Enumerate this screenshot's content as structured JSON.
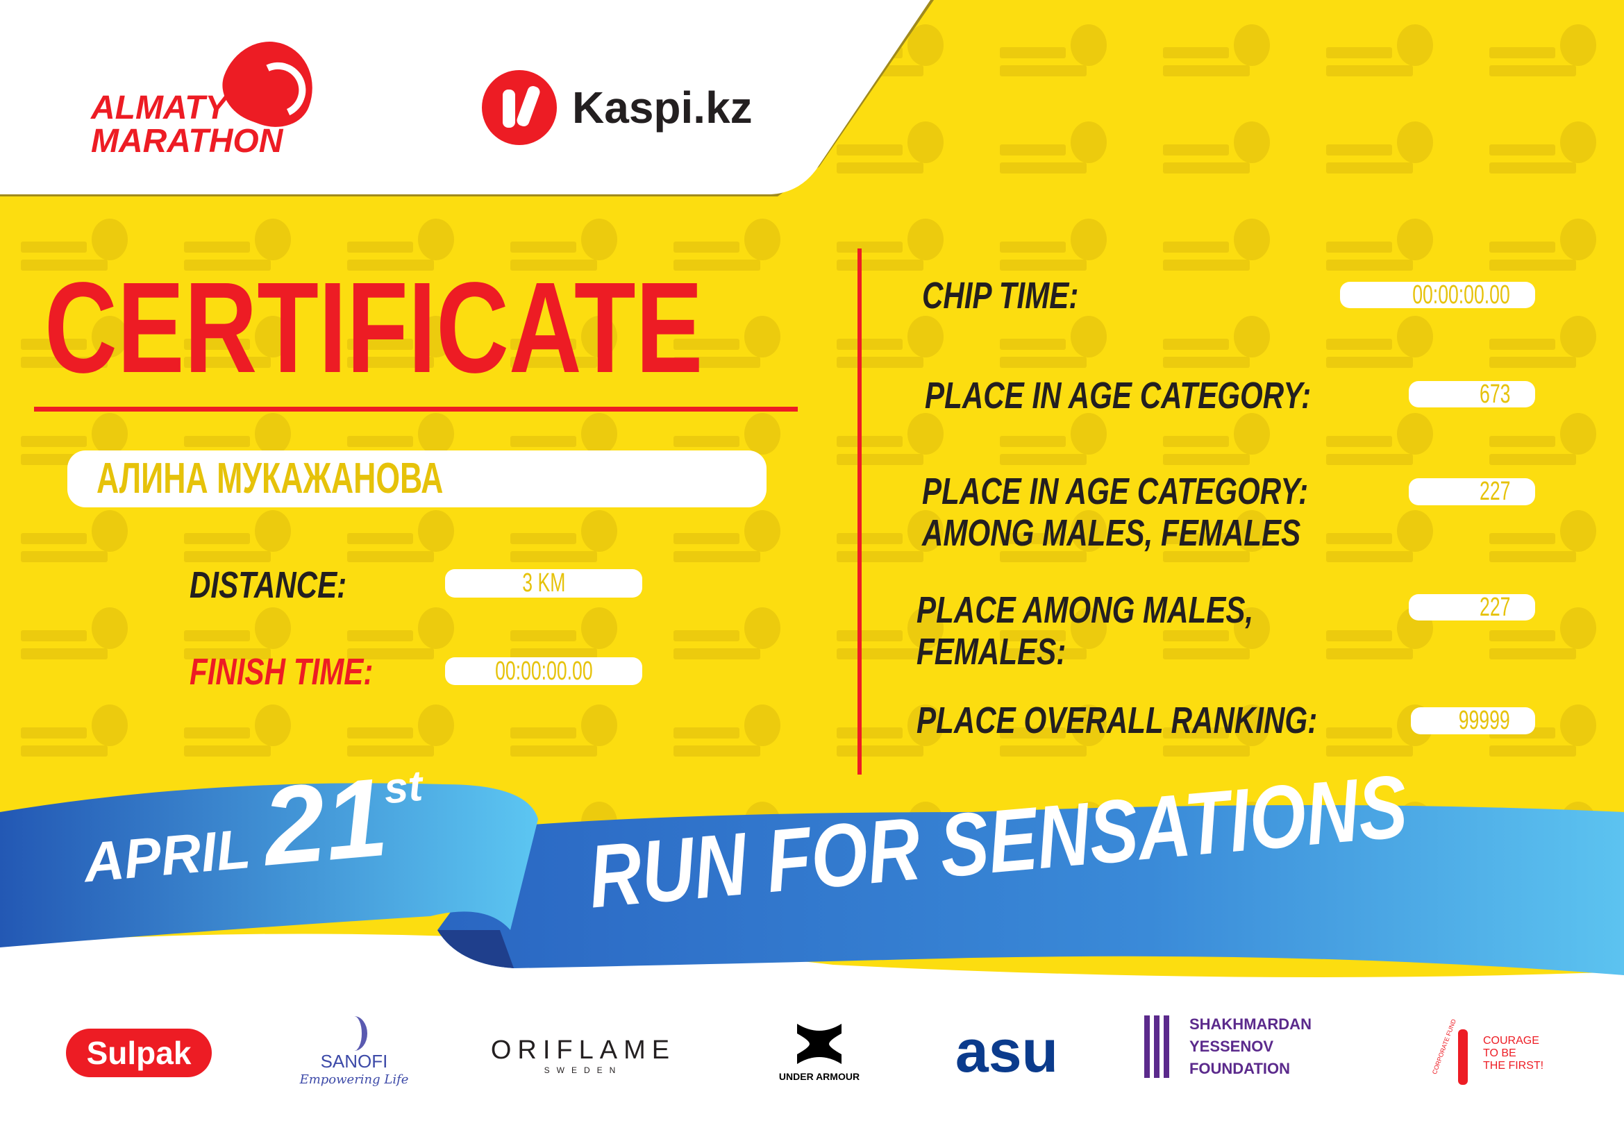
{
  "colors": {
    "yellow": "#fcdd10",
    "red": "#ed1c24",
    "dark": "#231f20",
    "blue": "#2f7fd0",
    "light_blue": "#5cc3f0"
  },
  "watermark": {
    "line1": "ALMATY",
    "line2": "MARATHON"
  },
  "header": {
    "organizer_logo": {
      "line1": "ALMATY",
      "line2": "MARATHON"
    },
    "sponsor_logo": "Kaspi.kz"
  },
  "title": "CERTIFICATE",
  "participant_name": "АЛИНА МУКАЖАНОВА",
  "left_fields": [
    {
      "label": "DISTANCE:",
      "value": "3 KM"
    },
    {
      "label": "FINISH TIME:",
      "value": "00:00:00.00"
    }
  ],
  "right_fields": [
    {
      "label": "CHIP TIME:",
      "value": "00:00:00.00"
    },
    {
      "label": "PLACE IN AGE CATEGORY:",
      "value": "673"
    },
    {
      "label": "PLACE IN AGE CATEGORY:",
      "label2": "AMONG MALES, FEMALES",
      "value": "227"
    },
    {
      "label": "PLACE AMONG MALES,",
      "label2": "FEMALES:",
      "value": "227"
    },
    {
      "label": "PLACE OVERALL RANKING:",
      "value": "99999"
    }
  ],
  "ribbon": {
    "month": "APRIL",
    "day": "21",
    "suffix": "st",
    "slogan": "RUN FOR SENSATIONS"
  },
  "sponsors": [
    {
      "name": "Sulpak"
    },
    {
      "name": "SANOFI",
      "tagline": "Empowering Life"
    },
    {
      "name": "ORIFLAME",
      "tagline": "SWEDEN"
    },
    {
      "name": "UNDER ARMOUR"
    },
    {
      "name": "asu"
    },
    {
      "name": "SHAKHMARDAN YESSENOV",
      "tagline": "FOUNDATION"
    },
    {
      "name": "COURAGE",
      "tagline": "TO BE",
      "tagline2": "THE FIRST!",
      "arc": "CORPORATE FUND"
    }
  ]
}
